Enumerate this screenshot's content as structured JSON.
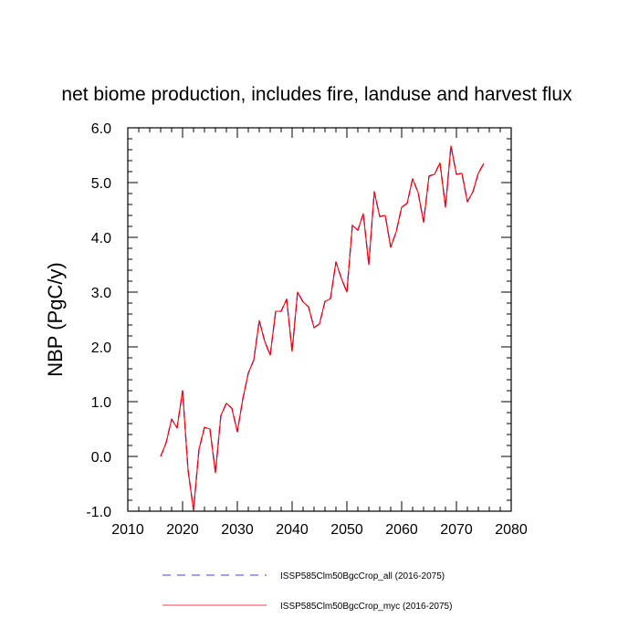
{
  "chart_data": {
    "type": "line",
    "title": "net biome production, includes fire, landuse and harvest flux",
    "xlabel": "",
    "ylabel": "NBP  (PgC/y)",
    "xlim": [
      2010,
      2080
    ],
    "ylim": [
      -1.0,
      6.0
    ],
    "x_ticks": [
      "2010",
      "2020",
      "2030",
      "2040",
      "2050",
      "2060",
      "2070",
      "2080"
    ],
    "y_ticks": [
      "-1.0",
      "0.0",
      "1.0",
      "2.0",
      "3.0",
      "4.0",
      "5.0",
      "6.0"
    ],
    "legend_position": "bottom",
    "grid": false,
    "x": [
      2016,
      2017,
      2018,
      2019,
      2020,
      2021,
      2022,
      2023,
      2024,
      2025,
      2026,
      2027,
      2028,
      2029,
      2030,
      2031,
      2032,
      2033,
      2034,
      2035,
      2036,
      2037,
      2038,
      2039,
      2040,
      2041,
      2042,
      2043,
      2044,
      2045,
      2046,
      2047,
      2048,
      2049,
      2050,
      2051,
      2052,
      2053,
      2054,
      2055,
      2056,
      2057,
      2058,
      2059,
      2060,
      2061,
      2062,
      2063,
      2064,
      2065,
      2066,
      2067,
      2068,
      2069,
      2070,
      2071,
      2072,
      2073,
      2074,
      2075
    ],
    "series": [
      {
        "name": "ISSP585Clm50BgcCrop_all (2016-2075)",
        "color": "#0000ff",
        "style": "dashed",
        "values": [
          0.0,
          0.25,
          0.68,
          0.52,
          1.2,
          -0.25,
          -0.98,
          0.13,
          0.53,
          0.5,
          -0.3,
          0.75,
          0.97,
          0.88,
          0.45,
          1.05,
          1.52,
          1.76,
          2.48,
          2.1,
          1.85,
          2.65,
          2.65,
          2.87,
          1.92,
          3.0,
          2.82,
          2.73,
          2.35,
          2.42,
          2.83,
          2.88,
          3.55,
          3.25,
          3.0,
          4.22,
          4.13,
          4.43,
          3.5,
          4.83,
          4.38,
          4.4,
          3.82,
          4.1,
          4.55,
          4.62,
          5.07,
          4.82,
          4.28,
          5.12,
          5.15,
          5.36,
          4.55,
          5.67,
          5.15,
          5.17,
          4.65,
          4.83,
          5.17,
          5.35
        ]
      },
      {
        "name": "ISSP585Clm50BgcCrop_myc (2016-2075)",
        "color": "#ff0000",
        "style": "solid",
        "values": [
          0.0,
          0.25,
          0.68,
          0.52,
          1.2,
          -0.25,
          -0.98,
          0.13,
          0.53,
          0.5,
          -0.3,
          0.75,
          0.97,
          0.88,
          0.45,
          1.05,
          1.52,
          1.76,
          2.48,
          2.1,
          1.85,
          2.65,
          2.65,
          2.87,
          1.92,
          3.0,
          2.82,
          2.73,
          2.35,
          2.42,
          2.83,
          2.88,
          3.55,
          3.25,
          3.0,
          4.22,
          4.13,
          4.43,
          3.5,
          4.83,
          4.38,
          4.4,
          3.82,
          4.1,
          4.55,
          4.62,
          5.07,
          4.82,
          4.28,
          5.12,
          5.15,
          5.36,
          4.55,
          5.67,
          5.15,
          5.17,
          4.65,
          4.83,
          5.17,
          5.35
        ]
      }
    ]
  }
}
